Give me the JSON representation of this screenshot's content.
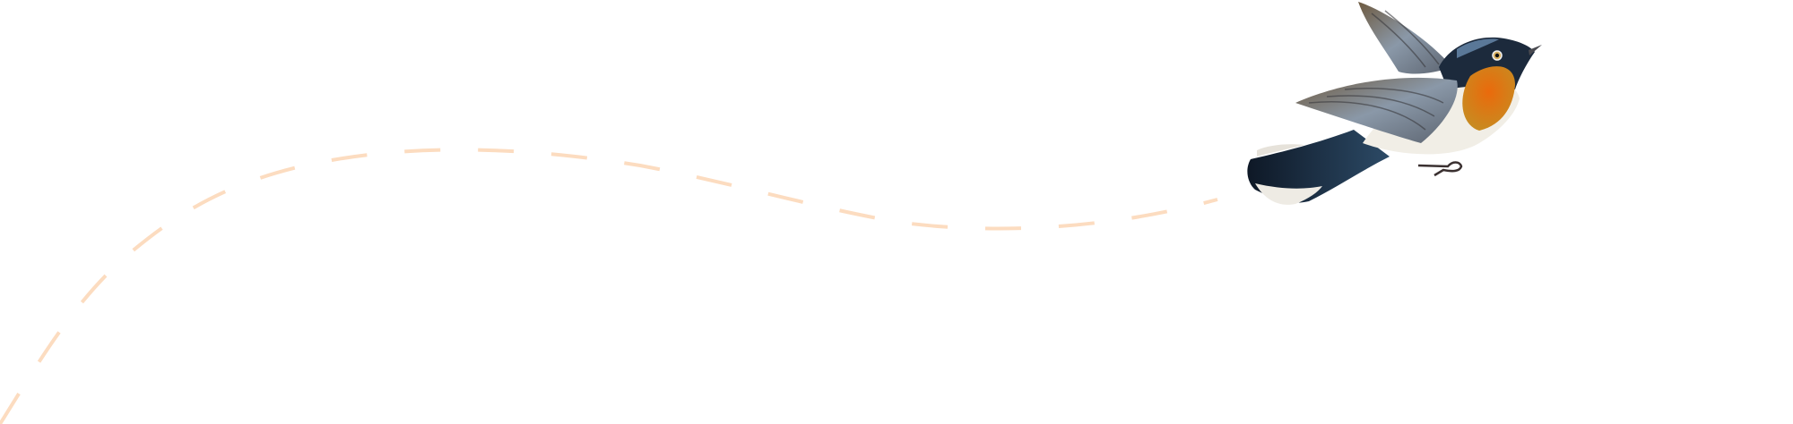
{
  "illustration": {
    "subject": "bird-in-flight",
    "colors": {
      "flight_path": "#fcdcc0",
      "background": "#ffffff",
      "breast": "#e0650f",
      "head": "#1c2a3c",
      "wing": "#7b8088",
      "belly": "#f1eee6",
      "tail": "#16243a"
    }
  }
}
